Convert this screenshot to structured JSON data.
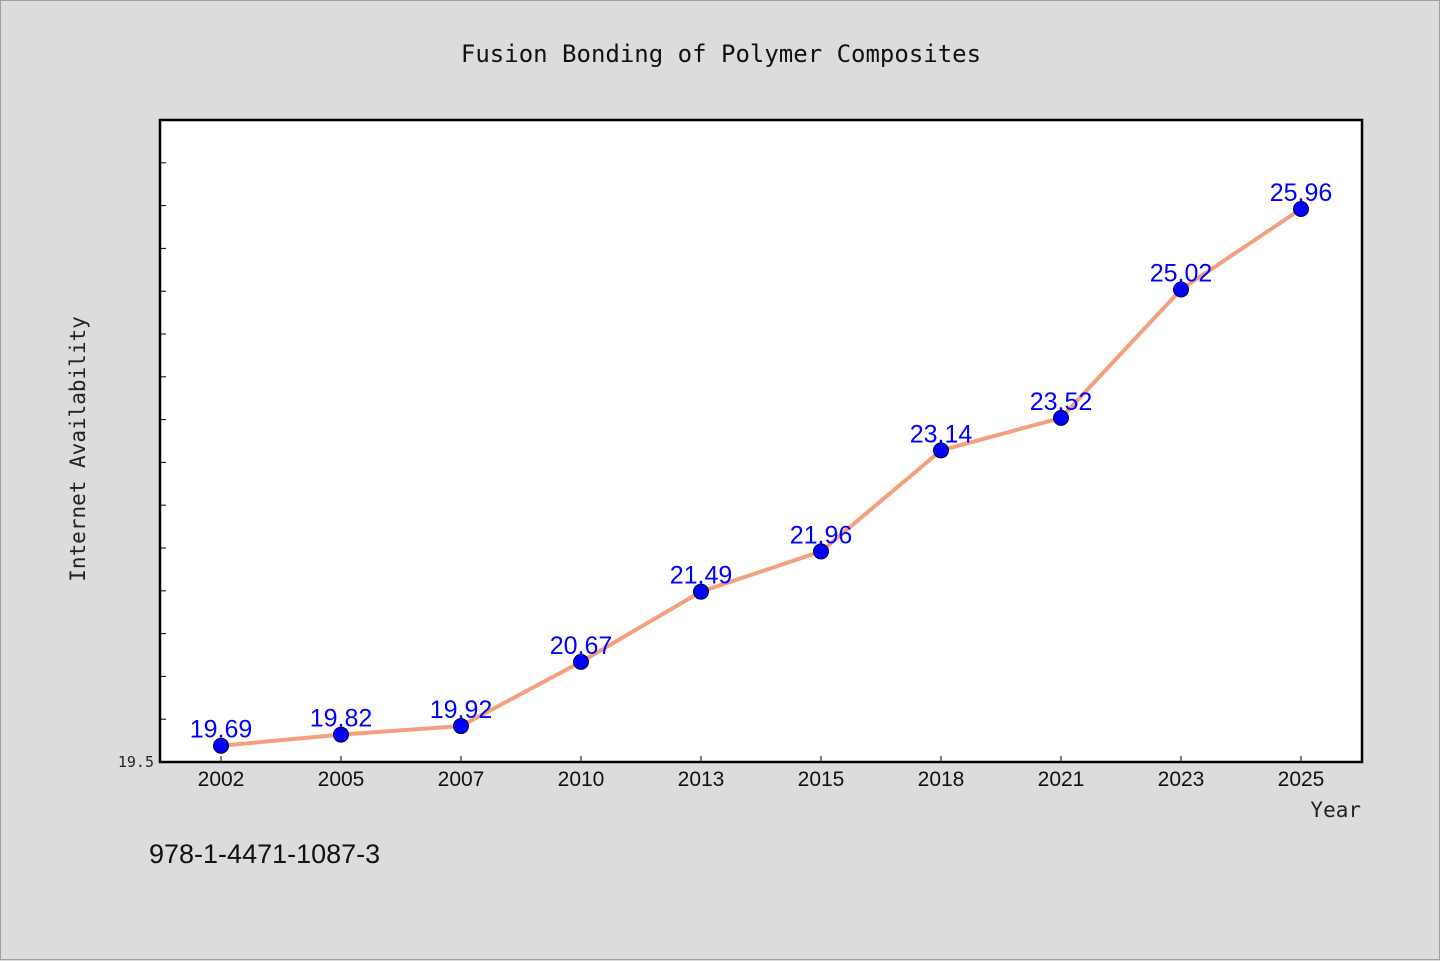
{
  "footer": {
    "isbn": "978-1-4471-1087-3"
  },
  "colors": {
    "background": "#dcdcdc",
    "plot_background": "#ffffff",
    "line": "#f4a07e",
    "marker": "#0000ff",
    "data_label": "#0000ff"
  },
  "chart_data": {
    "type": "line",
    "title": "Fusion Bonding of Polymer Composites",
    "xlabel": "Year",
    "ylabel": "Internet Availability",
    "categories": [
      "2002",
      "2005",
      "2007",
      "2010",
      "2013",
      "2015",
      "2018",
      "2021",
      "2023",
      "2025"
    ],
    "series": [
      {
        "values": [
          19.69,
          19.82,
          19.92,
          20.67,
          21.49,
          21.96,
          23.14,
          23.52,
          25.02,
          25.96
        ]
      }
    ],
    "ylim": [
      19.5,
      27.0
    ],
    "yticks_labeled": [
      "19.5"
    ],
    "ytick_step": 0.5,
    "grid": false,
    "legend": "none"
  }
}
